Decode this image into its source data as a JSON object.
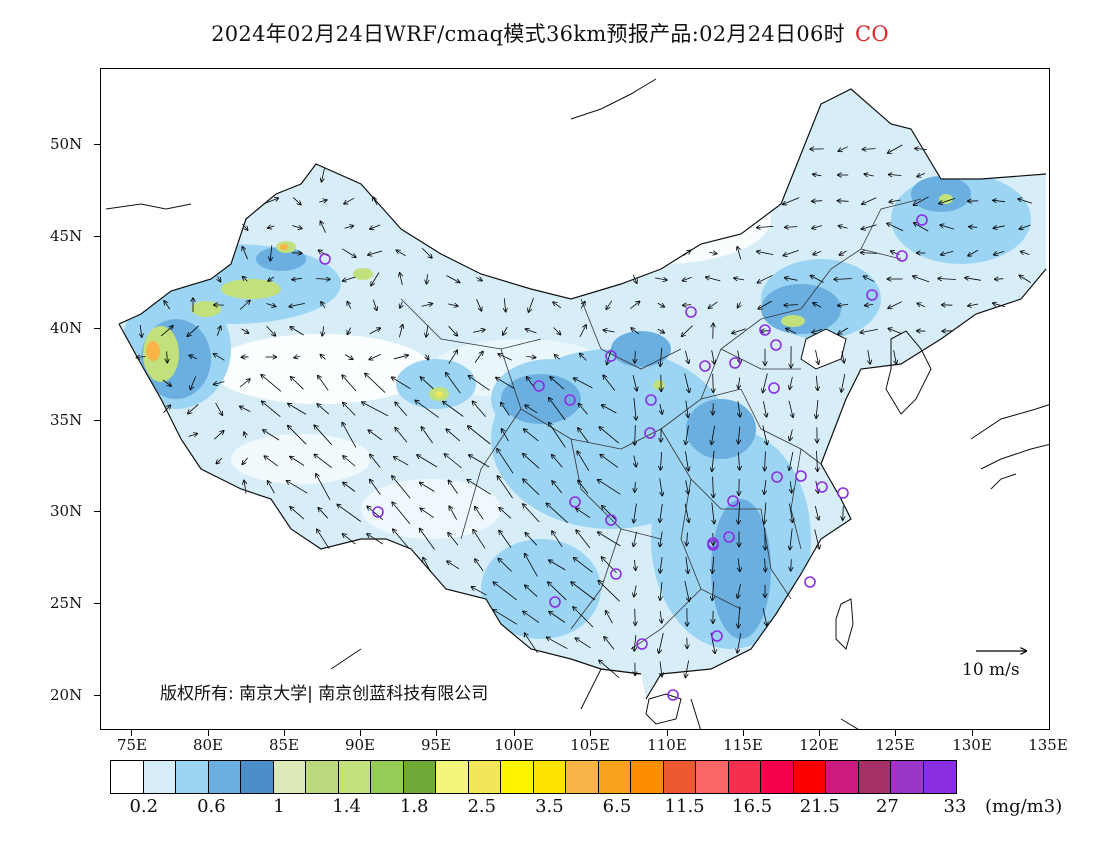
{
  "title": {
    "main": "2024年02月24日WRF/cmaq模式36km预报产品:02月24日06时",
    "species": "CO",
    "species_color": "#e0262a"
  },
  "axes": {
    "lat_labels": [
      "50N",
      "45N",
      "40N",
      "35N",
      "30N",
      "25N",
      "20N"
    ],
    "lon_labels": [
      "75E",
      "80E",
      "85E",
      "90E",
      "95E",
      "100E",
      "105E",
      "110E",
      "115E",
      "120E",
      "125E",
      "130E",
      "135E"
    ]
  },
  "copyright": "版权所有: 南京大学| 南京创蓝科技有限公司",
  "wind_reference": {
    "label": "10 m/s",
    "speed": 10
  },
  "colorbar": {
    "colors": [
      "#ffffff",
      "#d7eef9",
      "#9cd5f3",
      "#6bafe0",
      "#4a8fc7",
      "#dce9b9",
      "#bcd97d",
      "#c2e07c",
      "#94cd56",
      "#6faa36",
      "#f2f77c",
      "#f2e75c",
      "#fdf401",
      "#fde400",
      "#f8b447",
      "#f9a21d",
      "#fd8c00",
      "#ee5a2f",
      "#fb6667",
      "#f52d4f",
      "#f6004a",
      "#fa0000",
      "#cb1b7e",
      "#a62f65",
      "#9935c8",
      "#8a2ee3"
    ],
    "labels": [
      "0.2",
      "0.6",
      "1",
      "1.4",
      "1.8",
      "2.5",
      "3.5",
      "6.5",
      "11.5",
      "16.5",
      "21.5",
      "27",
      "33"
    ],
    "unit": "(mg/m3)"
  },
  "map": {
    "background_color": "#ffffff",
    "land_base_color": "#d7eef9",
    "station_marker_color": "#8a2ee3",
    "border_color": "#111111"
  }
}
